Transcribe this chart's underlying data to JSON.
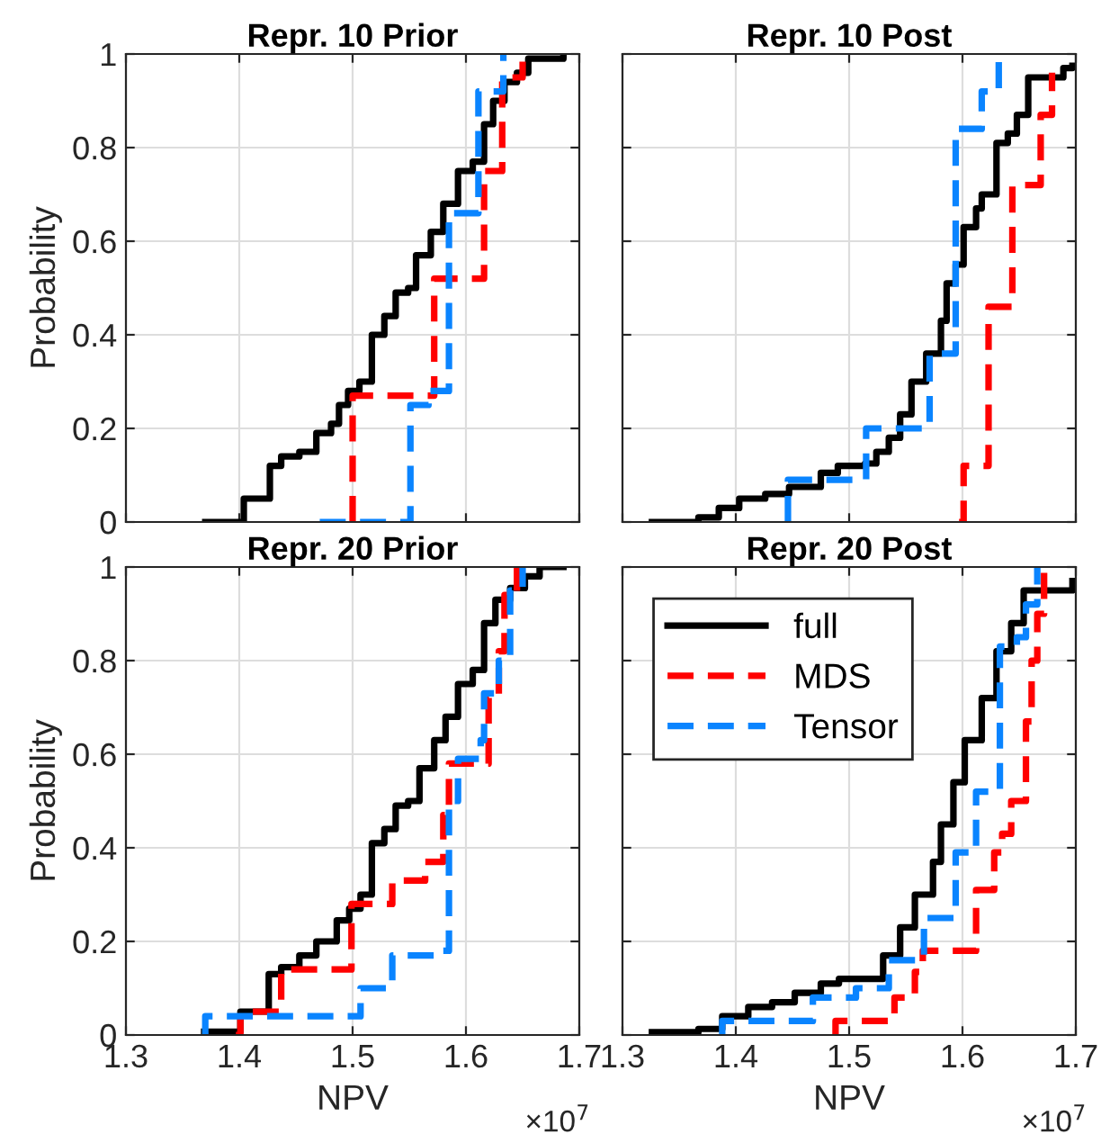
{
  "chart_data": [
    {
      "type": "step",
      "title": "Repr. 10 Prior",
      "ylabel": "Probability",
      "xlim": [
        1.3,
        1.7
      ],
      "ylim": [
        0,
        1
      ],
      "xticks": [
        1.3,
        1.4,
        1.5,
        1.6,
        1.7
      ],
      "yticks": [
        0,
        0.2,
        0.4,
        0.6,
        0.8,
        1
      ],
      "grid": true,
      "tick_labels": "y",
      "series": [
        {
          "color": "#000000",
          "line_style": "solid",
          "x": [
            1.37,
            1.398,
            1.404,
            1.417,
            1.427,
            1.437,
            1.453,
            1.468,
            1.481,
            1.488,
            1.496,
            1.506,
            1.517,
            1.528,
            1.538,
            1.549,
            1.556,
            1.569,
            1.58,
            1.593,
            1.606,
            1.616,
            1.624,
            1.634,
            1.645,
            1.655,
            1.686
          ],
          "values": [
            0,
            0,
            0.05,
            0.05,
            0.12,
            0.14,
            0.15,
            0.19,
            0.21,
            0.25,
            0.28,
            0.3,
            0.4,
            0.44,
            0.49,
            0.5,
            0.57,
            0.62,
            0.68,
            0.75,
            0.77,
            0.85,
            0.9,
            0.94,
            0.96,
            0.99,
            1
          ]
        },
        {
          "color": "#ff0000",
          "line_style": "dashed",
          "x": [
            1.5,
            1.5,
            1.572,
            1.616,
            1.632,
            1.65
          ],
          "values": [
            0,
            0.27,
            0.52,
            0.75,
            0.95,
            1
          ]
        },
        {
          "color": "#0a84ff",
          "line_style": "dashed",
          "x": [
            1.471,
            1.551,
            1.567,
            1.585,
            1.611,
            1.633
          ],
          "values": [
            0,
            0.25,
            0.28,
            0.66,
            0.92,
            1
          ]
        }
      ]
    },
    {
      "type": "step",
      "title": "Repr. 10 Post",
      "xlim": [
        1.3,
        1.7
      ],
      "ylim": [
        0,
        1
      ],
      "xticks": [
        1.3,
        1.4,
        1.5,
        1.6,
        1.7
      ],
      "yticks": [
        0,
        0.2,
        0.4,
        0.6,
        0.8,
        1
      ],
      "grid": true,
      "tick_labels": false,
      "series": [
        {
          "color": "#000000",
          "line_style": "solid",
          "x": [
            1.326,
            1.367,
            1.385,
            1.403,
            1.426,
            1.447,
            1.475,
            1.49,
            1.514,
            1.524,
            1.535,
            1.545,
            1.555,
            1.568,
            1.581,
            1.586,
            1.594,
            1.601,
            1.612,
            1.617,
            1.63,
            1.64,
            1.648,
            1.658,
            1.684,
            1.689,
            1.697
          ],
          "values": [
            0,
            0.01,
            0.03,
            0.05,
            0.06,
            0.075,
            0.105,
            0.12,
            0.125,
            0.15,
            0.18,
            0.23,
            0.3,
            0.36,
            0.43,
            0.51,
            0.55,
            0.63,
            0.67,
            0.7,
            0.81,
            0.83,
            0.87,
            0.95,
            0.95,
            0.97,
            0.975
          ]
        },
        {
          "color": "#ff0000",
          "line_style": "dashed",
          "x": [
            1.597,
            1.601,
            1.623,
            1.644,
            1.669,
            1.679
          ],
          "values": [
            0,
            0.12,
            0.46,
            0.72,
            0.87,
            0.96
          ]
        },
        {
          "color": "#0a84ff",
          "line_style": "dashed",
          "x": [
            1.446,
            1.446,
            1.515,
            1.571,
            1.594,
            1.617,
            1.632
          ],
          "values": [
            0,
            0.09,
            0.2,
            0.36,
            0.84,
            0.92,
            1
          ]
        }
      ]
    },
    {
      "type": "step",
      "title": "Repr. 20 Prior",
      "xlabel": "NPV",
      "ylabel": "Probability",
      "annotations": [
        "×10$^{7}$"
      ],
      "xlim": [
        1.3,
        1.7
      ],
      "ylim": [
        0,
        1
      ],
      "xticks": [
        1.3,
        1.4,
        1.5,
        1.6,
        1.7
      ],
      "yticks": [
        0,
        0.2,
        0.4,
        0.6,
        0.8,
        1
      ],
      "grid": true,
      "series": [
        {
          "color": "#000000",
          "line_style": "solid",
          "x": [
            1.369,
            1.395,
            1.401,
            1.417,
            1.426,
            1.437,
            1.453,
            1.468,
            1.486,
            1.497,
            1.507,
            1.517,
            1.528,
            1.538,
            1.549,
            1.559,
            1.572,
            1.582,
            1.593,
            1.606,
            1.616,
            1.626,
            1.639,
            1.652,
            1.665,
            1.686
          ],
          "values": [
            0.007,
            0.007,
            0.05,
            0.05,
            0.13,
            0.145,
            0.17,
            0.2,
            0.245,
            0.27,
            0.3,
            0.41,
            0.44,
            0.49,
            0.5,
            0.57,
            0.63,
            0.68,
            0.75,
            0.78,
            0.88,
            0.93,
            0.955,
            0.98,
            1,
            1
          ]
        },
        {
          "color": "#ff0000",
          "line_style": "dashed",
          "x": [
            1.397,
            1.401,
            1.437,
            1.499,
            1.535,
            1.564,
            1.58,
            1.585,
            1.62,
            1.629,
            1.634,
            1.645
          ],
          "values": [
            0,
            0.05,
            0.14,
            0.28,
            0.33,
            0.37,
            0.47,
            0.58,
            0.72,
            0.82,
            0.94,
            1
          ]
        },
        {
          "color": "#0a84ff",
          "line_style": "dashed",
          "x": [
            1.37,
            1.37,
            1.507,
            1.535,
            1.577,
            1.585,
            1.593,
            1.613,
            1.616,
            1.629,
            1.639,
            1.65
          ],
          "values": [
            0,
            0.04,
            0.1,
            0.17,
            0.18,
            0.5,
            0.59,
            0.63,
            0.73,
            0.8,
            0.95,
            1
          ]
        }
      ]
    },
    {
      "type": "step",
      "title": "Repr. 20 Post",
      "xlabel": "NPV",
      "annotations": [
        "×10$^{7}$"
      ],
      "xlim": [
        1.3,
        1.7
      ],
      "ylim": [
        0,
        1
      ],
      "xticks": [
        1.3,
        1.4,
        1.5,
        1.6,
        1.7
      ],
      "yticks": [
        0,
        0.2,
        0.4,
        0.6,
        0.8,
        1
      ],
      "grid": true,
      "tick_labels": "x",
      "legend": "top left",
      "series": [
        {
          "name": "full",
          "color": "#000000",
          "line_style": "solid",
          "x": [
            1.326,
            1.367,
            1.388,
            1.411,
            1.432,
            1.452,
            1.475,
            1.491,
            1.514,
            1.53,
            1.545,
            1.558,
            1.574,
            1.581,
            1.592,
            1.602,
            1.617,
            1.63,
            1.643,
            1.654,
            1.69,
            1.697
          ],
          "values": [
            0.006,
            0.013,
            0.04,
            0.06,
            0.07,
            0.09,
            0.11,
            0.12,
            0.12,
            0.17,
            0.23,
            0.3,
            0.37,
            0.45,
            0.54,
            0.63,
            0.72,
            0.82,
            0.88,
            0.95,
            0.95,
            0.97
          ]
        },
        {
          "name": "MDS",
          "color": "#ff0000",
          "line_style": "dashed",
          "x": [
            1.488,
            1.488,
            1.54,
            1.558,
            1.565,
            1.612,
            1.628,
            1.635,
            1.643,
            1.656,
            1.661,
            1.666,
            1.672
          ],
          "values": [
            0,
            0.03,
            0.08,
            0.135,
            0.18,
            0.31,
            0.39,
            0.43,
            0.5,
            0.67,
            0.8,
            0.9,
            1
          ]
        },
        {
          "name": "Tensor",
          "color": "#0a84ff",
          "line_style": "dashed",
          "x": [
            1.388,
            1.388,
            1.468,
            1.506,
            1.535,
            1.566,
            1.594,
            1.612,
            1.633,
            1.648,
            1.656,
            1.666
          ],
          "values": [
            0,
            0.03,
            0.08,
            0.1,
            0.16,
            0.25,
            0.39,
            0.52,
            0.83,
            0.85,
            0.92,
            1
          ]
        }
      ]
    }
  ]
}
